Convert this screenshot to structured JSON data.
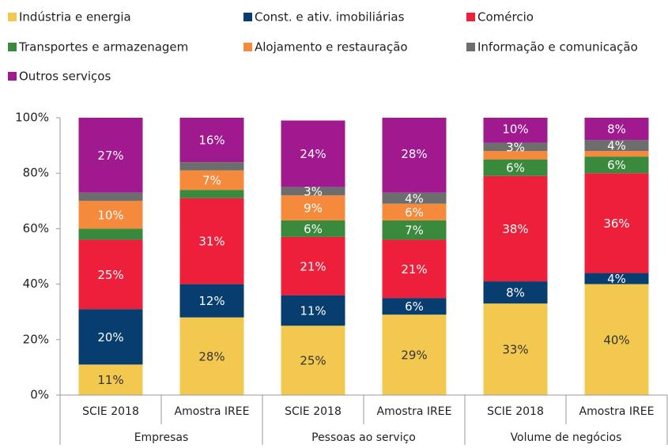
{
  "chart_data": {
    "type": "stacked_bar",
    "categories": [
      "SCIE 2018",
      "Amostra IREE",
      "SCIE 2018",
      "Amostra IREE",
      "SCIE 2018",
      "Amostra IREE"
    ],
    "group_labels": [
      "Empresas",
      "Pessoas ao serviço",
      "Volume de negócios"
    ],
    "series": [
      {
        "name": "Indústria e energia",
        "color": "#f3c84f",
        "values": [
          11,
          28,
          25,
          29,
          33,
          40
        ],
        "value_labels": [
          "11%",
          "28%",
          "25%",
          "29%",
          "33%",
          "40%"
        ]
      },
      {
        "name": "Const. e ativ. imobiliárias",
        "color": "#083d6f",
        "values": [
          20,
          12,
          11,
          6,
          8,
          4
        ],
        "value_labels": [
          "20%",
          "12%",
          "11%",
          "6%",
          "8%",
          "4%"
        ]
      },
      {
        "name": "Comércio",
        "color": "#ee1f3b",
        "values": [
          25,
          31,
          21,
          21,
          38,
          36
        ],
        "value_labels": [
          "25%",
          "31%",
          "21%",
          "21%",
          "38%",
          "36%"
        ]
      },
      {
        "name": "Transportes e armazenagem",
        "color": "#3a8a3d",
        "values": [
          4,
          3,
          6,
          7,
          6,
          6
        ],
        "value_labels": [
          null,
          null,
          "6%",
          "7%",
          "6%",
          "6%"
        ]
      },
      {
        "name": "Alojamento e restauração",
        "color": "#f58a3c",
        "values": [
          10,
          7,
          9,
          6,
          3,
          2
        ],
        "value_labels": [
          "10%",
          "7%",
          "9%",
          "6%",
          null,
          null
        ]
      },
      {
        "name": "Informação e comunicação",
        "color": "#6d6d6d",
        "values": [
          3,
          3,
          3,
          4,
          3,
          4
        ],
        "value_labels": [
          null,
          null,
          "3%",
          "4%",
          "3%",
          "4%"
        ]
      },
      {
        "name": "Outros serviços",
        "color": "#a0198f",
        "values": [
          27,
          16,
          24,
          28,
          10,
          8
        ],
        "value_labels": [
          "27%",
          "16%",
          "24%",
          "28%",
          "10%",
          "8%"
        ]
      }
    ],
    "ylim": [
      0,
      100
    ],
    "yticks": [
      {
        "value": 0,
        "label": "0%"
      },
      {
        "value": 20,
        "label": "20%"
      },
      {
        "value": 40,
        "label": "40%"
      },
      {
        "value": 60,
        "label": "60%"
      },
      {
        "value": 80,
        "label": "80%"
      },
      {
        "value": 100,
        "label": "100%"
      }
    ],
    "grid": false
  }
}
